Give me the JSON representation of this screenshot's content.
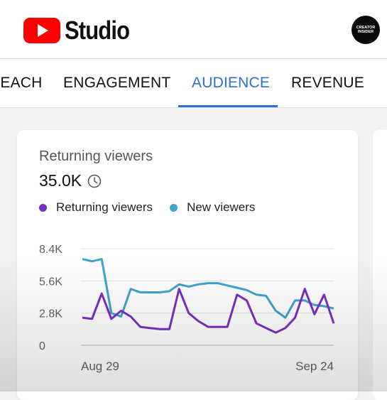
{
  "app": {
    "title": "Studio",
    "avatar_line1": "CREATOR",
    "avatar_line2": "INSIDER"
  },
  "tabs": [
    {
      "label": "REACH",
      "active": false
    },
    {
      "label": "ENGAGEMENT",
      "active": false
    },
    {
      "label": "AUDIENCE",
      "active": true
    },
    {
      "label": "REVENUE",
      "active": false
    }
  ],
  "card": {
    "title": "Returning viewers",
    "value": "35.0K",
    "value_icon": "clock-icon"
  },
  "colors": {
    "accent": "#2f6fcf",
    "brand": "#ff0000",
    "returning": "#7b2fbe",
    "new": "#3fa3cd"
  },
  "chart_data": {
    "type": "line",
    "x_labels": [
      "Aug 29",
      "Sep 24"
    ],
    "y_ticks": [
      "8.4K",
      "5.6K",
      "2.8K",
      "0"
    ],
    "ylim": [
      0,
      8400
    ],
    "grid": true,
    "legend_position": "top-left",
    "series": [
      {
        "name": "Returning viewers",
        "color": "#7b2fbe",
        "values": [
          2400,
          2300,
          4500,
          2300,
          3000,
          2500,
          1600,
          1500,
          1400,
          1400,
          4900,
          2800,
          2100,
          1600,
          1600,
          1600,
          4400,
          3900,
          1900,
          1500,
          1100,
          1500,
          2400,
          4900,
          2700,
          4400,
          1900
        ]
      },
      {
        "name": "New viewers",
        "color": "#3fa3cd",
        "values": [
          7500,
          7300,
          7500,
          2800,
          2500,
          4900,
          4600,
          4600,
          4600,
          4700,
          5300,
          5100,
          5300,
          5400,
          5400,
          5200,
          5000,
          4800,
          4400,
          4300,
          3000,
          2400,
          3900,
          3900,
          3500,
          3400,
          3200
        ]
      }
    ]
  }
}
